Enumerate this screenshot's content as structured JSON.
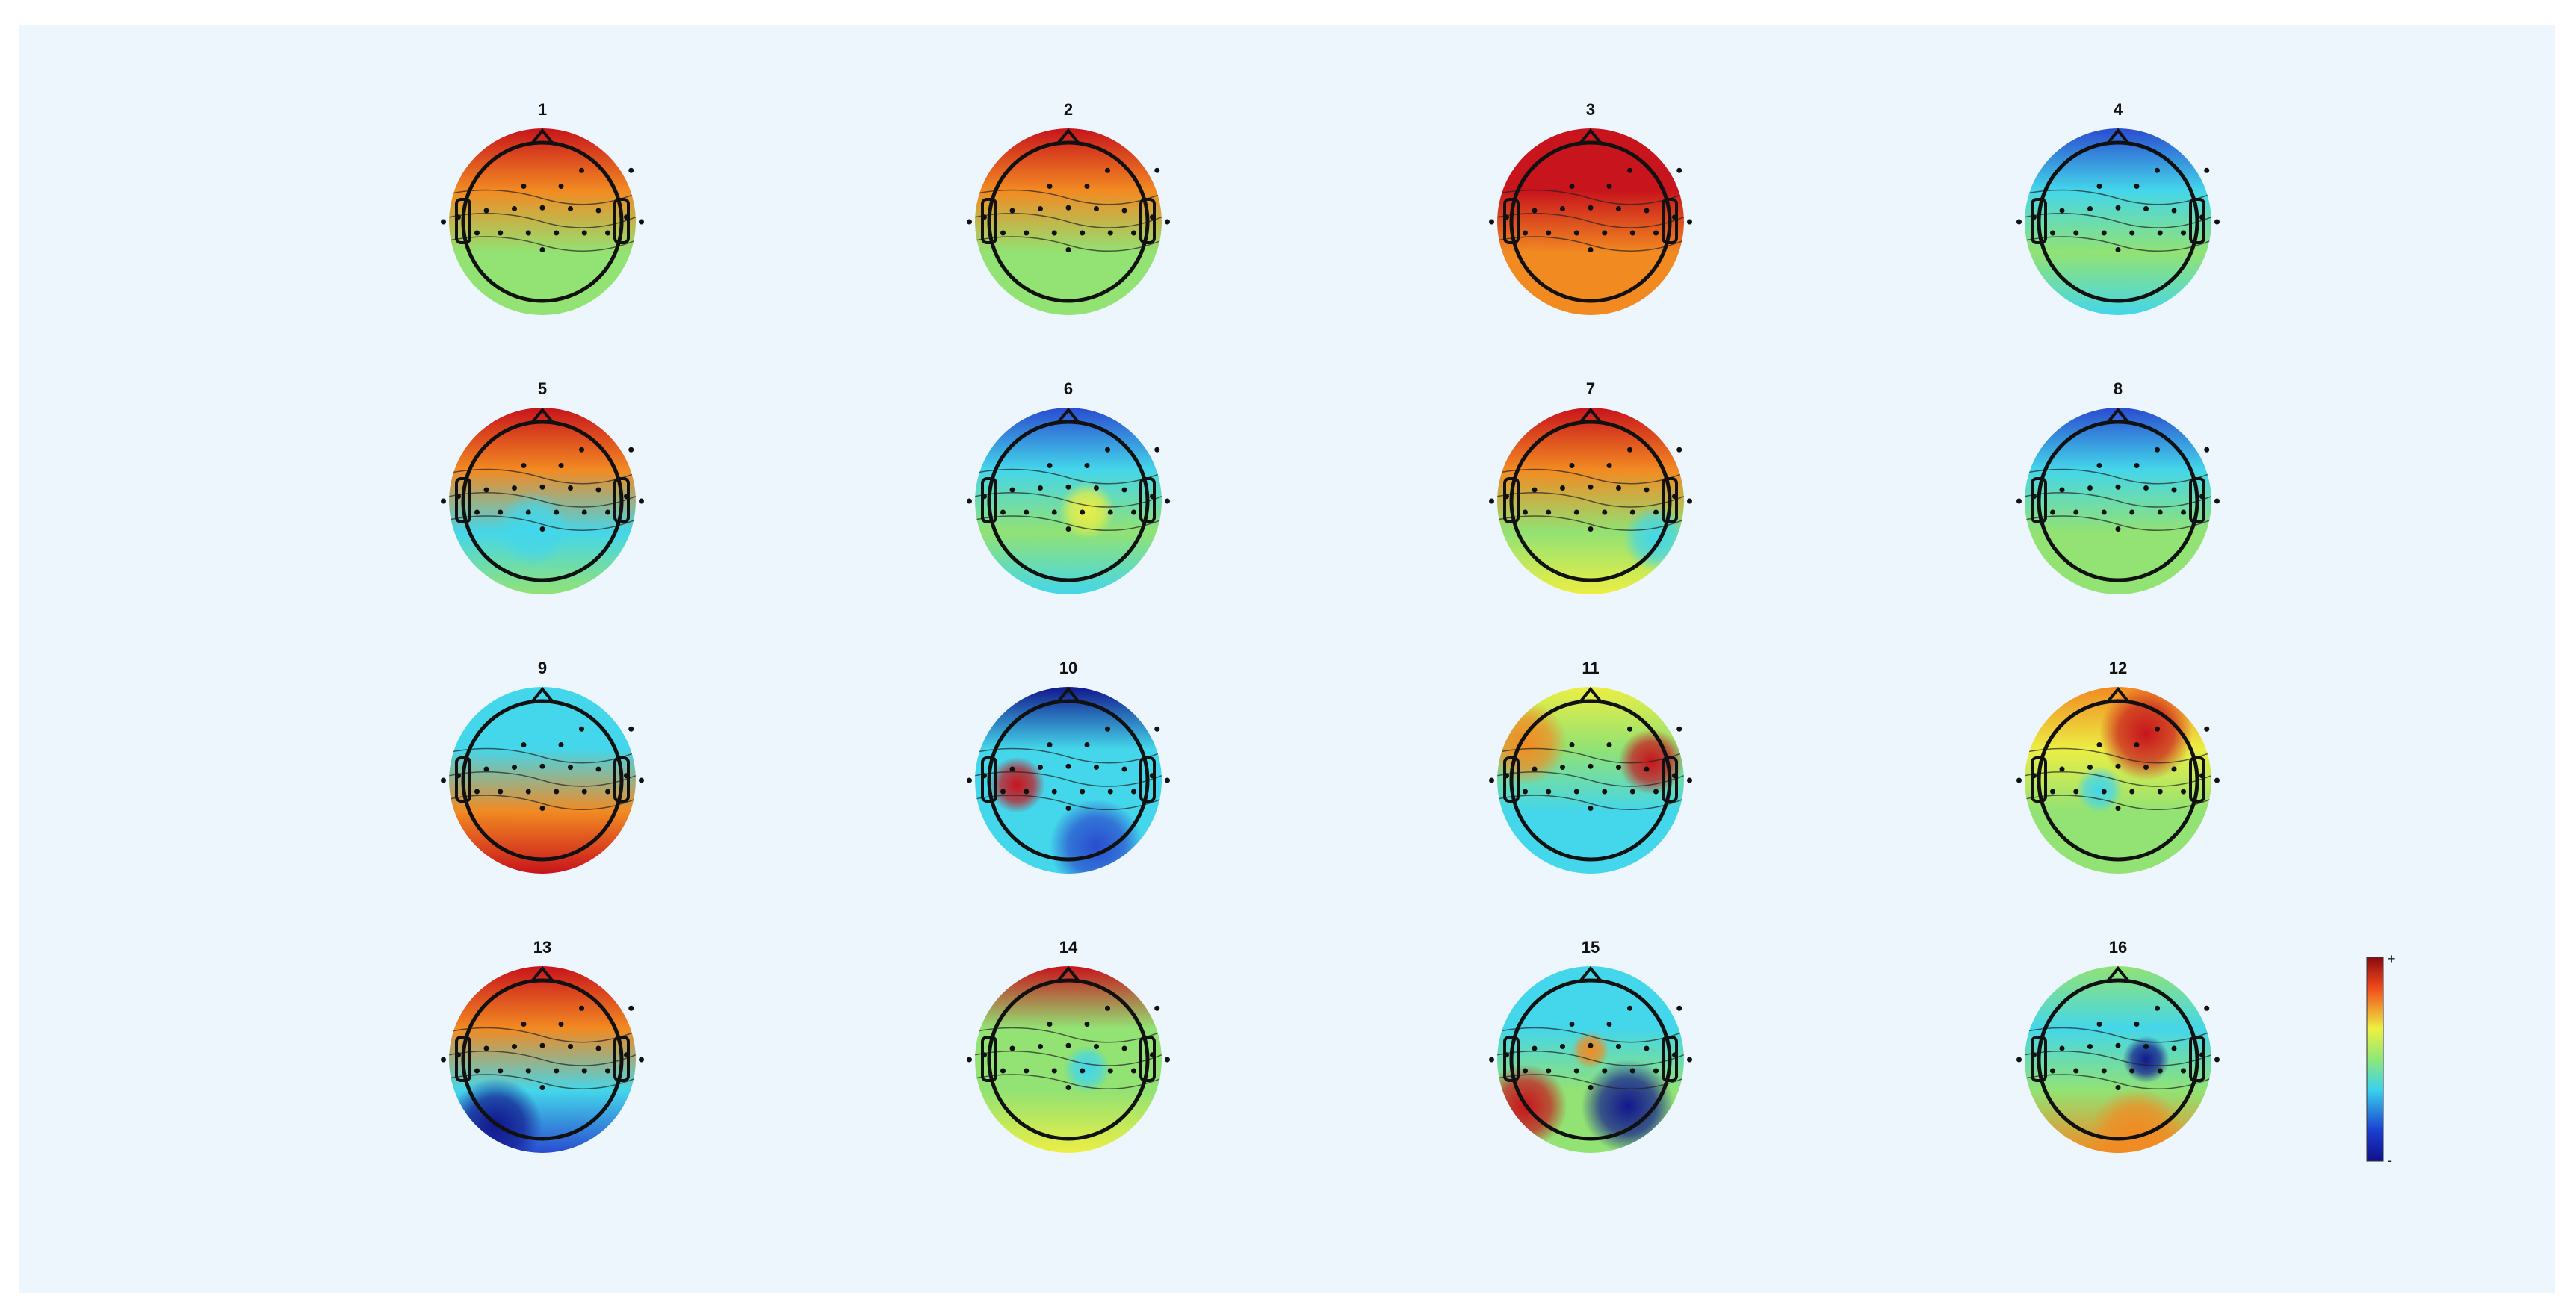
{
  "panels": [
    "1",
    "2",
    "3",
    "4",
    "5",
    "6",
    "7",
    "8",
    "9",
    "10",
    "11",
    "12",
    "13",
    "14",
    "15",
    "16"
  ],
  "colorbar": {
    "max_label": "+",
    "min_label": "-"
  }
}
